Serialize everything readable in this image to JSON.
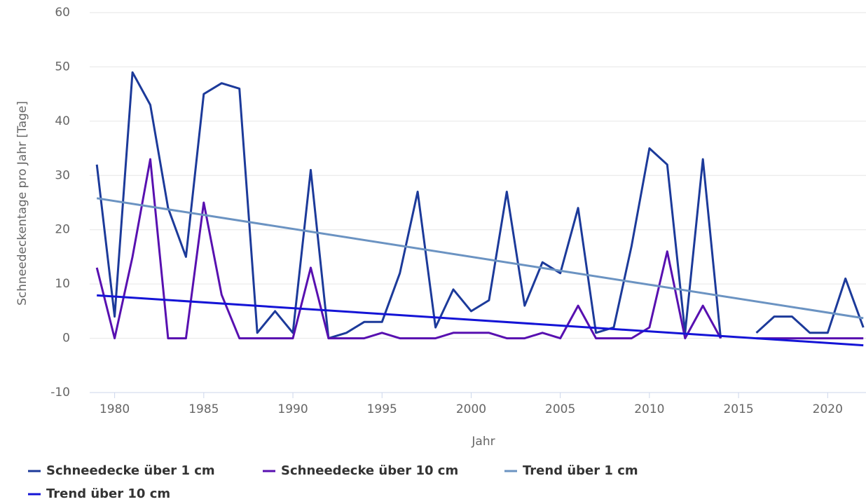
{
  "chart_data": {
    "type": "line",
    "x_label": "Jahr",
    "y_label": "Schneedeckentage pro Jahr [Tage]",
    "x": [
      1979,
      1980,
      1981,
      1982,
      1983,
      1984,
      1985,
      1986,
      1987,
      1988,
      1989,
      1990,
      1991,
      1992,
      1993,
      1994,
      1995,
      1996,
      1997,
      1998,
      1999,
      2000,
      2001,
      2002,
      2003,
      2004,
      2005,
      2006,
      2007,
      2008,
      2009,
      2010,
      2011,
      2012,
      2013,
      2014,
      2015,
      2016,
      2017,
      2018,
      2019,
      2020,
      2021,
      2022
    ],
    "series": [
      {
        "name": "Schneedecke über 1 cm",
        "color": "#1c3a9a",
        "values": [
          32,
          4,
          49,
          43,
          24,
          15,
          45,
          47,
          46,
          1,
          5,
          1,
          31,
          0,
          1,
          3,
          3,
          12,
          27,
          2,
          9,
          5,
          7,
          27,
          6,
          14,
          12,
          24,
          1,
          2,
          17,
          35,
          32,
          1,
          33,
          0,
          null,
          1,
          4,
          4,
          1,
          1,
          11,
          2
        ]
      },
      {
        "name": "Schneedecke über 10 cm",
        "color": "#5810b0",
        "values": [
          13,
          0,
          15,
          33,
          0,
          0,
          25,
          8,
          0,
          0,
          0,
          0,
          13,
          0,
          0,
          0,
          1,
          0,
          0,
          0,
          1,
          1,
          1,
          0,
          0,
          1,
          0,
          6,
          0,
          0,
          0,
          2,
          16,
          0,
          6,
          0,
          null,
          0,
          0,
          0,
          0,
          0,
          0,
          0
        ]
      },
      {
        "name": "Trend über 1 cm",
        "color": "#6b93c2",
        "x": [
          1979,
          2022
        ],
        "values": [
          25.8,
          3.7
        ]
      },
      {
        "name": "Trend über 10 cm",
        "color": "#1414d6",
        "x": [
          1979,
          2022
        ],
        "values": [
          7.9,
          -1.3
        ]
      }
    ],
    "xlim": [
      1978.6,
      2022.15
    ],
    "xticks": [
      1980,
      1985,
      1990,
      1995,
      2000,
      2005,
      2010,
      2015,
      2020
    ],
    "ylim": [
      -10,
      60
    ],
    "yticks": [
      -10,
      0,
      10,
      20,
      30,
      40,
      50,
      60
    ],
    "grid": true,
    "legend": "bottom"
  }
}
